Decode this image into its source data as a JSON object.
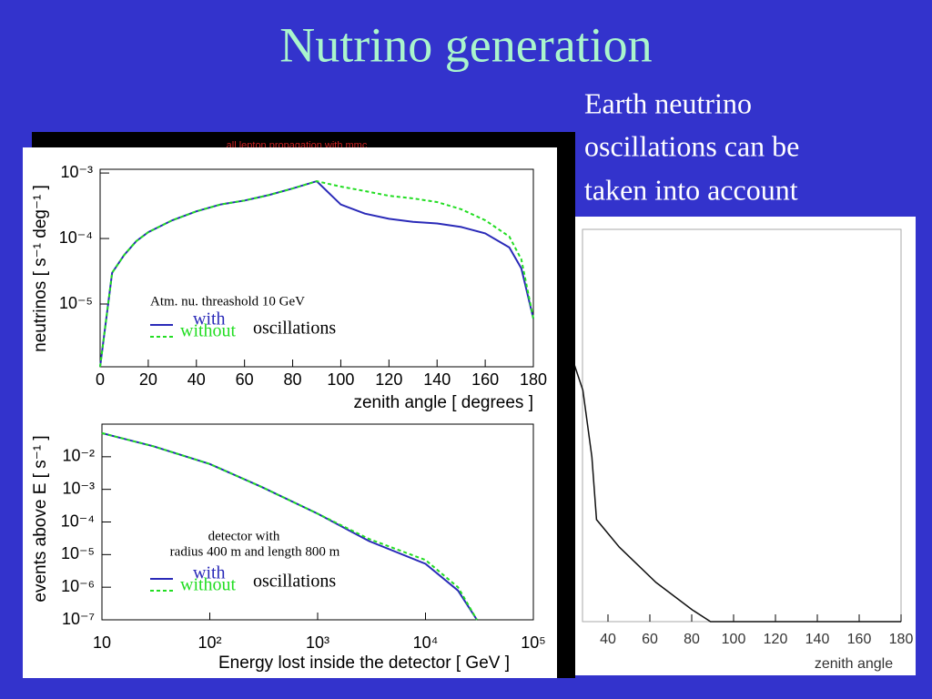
{
  "title": "Nutrino generation",
  "text": [
    "Earth neutrino",
    "oscillations can be",
    "taken into account"
  ],
  "chart_data": [
    {
      "type": "line",
      "ylog": true,
      "xlabel": "zenith angle [ degrees ]",
      "ylabel": "neutrinos [ s⁻¹ deg⁻¹ ]",
      "annotations": [
        "Atm. nu. threashold 10 GeV"
      ],
      "legend_note": "oscillations",
      "xlim": [
        0,
        180
      ],
      "xticks": [
        0,
        20,
        40,
        60,
        80,
        100,
        120,
        140,
        160,
        180
      ],
      "ylim": [
        1.1e-06,
        0.00114
      ],
      "yticks": [
        {
          "value": 0.001,
          "label": "10⁻³"
        },
        {
          "value": 0.0001,
          "label": "10⁻⁴"
        },
        {
          "value": 1e-05,
          "label": "10⁻⁵"
        }
      ],
      "x": [
        0,
        5,
        10,
        15,
        20,
        30,
        40,
        50,
        60,
        70,
        80,
        90,
        100,
        110,
        120,
        130,
        140,
        150,
        160,
        170,
        175,
        180
      ],
      "series": [
        {
          "name": "with",
          "color": "#2a2ab8",
          "dashed": false,
          "values": [
            1.1e-06,
            3e-05,
            5.6e-05,
            9.1e-05,
            0.000125,
            0.00019,
            0.00026,
            0.00033,
            0.00038,
            0.00046,
            0.00058,
            0.00075,
            0.00033,
            0.00024,
            0.0002,
            0.00018,
            0.00017,
            0.00015,
            0.00012,
            7.3e-05,
            3.5e-05,
            6e-06
          ]
        },
        {
          "name": "without",
          "color": "#22dd22",
          "dashed": true,
          "values": [
            1.1e-06,
            3e-05,
            5.6e-05,
            9.1e-05,
            0.000125,
            0.00019,
            0.00026,
            0.00033,
            0.00038,
            0.00046,
            0.00058,
            0.00075,
            0.00062,
            0.00053,
            0.00045,
            0.00041,
            0.00036,
            0.00028,
            0.00019,
            0.000107,
            4.8e-05,
            6e-06
          ]
        }
      ]
    },
    {
      "type": "line",
      "xlog": true,
      "ylog": true,
      "xlabel": "Energy lost inside the detector [ GeV ]",
      "ylabel": "events above E [ s⁻¹ ]",
      "annotations": [
        "detector with",
        "radius 400 m and length 800 m"
      ],
      "legend_note": "oscillations",
      "xlim": [
        10,
        100000
      ],
      "xticks": [
        10,
        {
          "value": 100,
          "label": "10²"
        },
        {
          "value": 1000,
          "label": "10³"
        },
        {
          "value": 10000,
          "label": "10⁴"
        },
        {
          "value": 100000,
          "label": "10⁵"
        }
      ],
      "ylim": [
        1e-07,
        0.1
      ],
      "yticks": [
        {
          "value": 0.01,
          "label": "10⁻²"
        },
        {
          "value": 0.001,
          "label": "10⁻³"
        },
        {
          "value": 0.0001,
          "label": "10⁻⁴"
        },
        {
          "value": 1e-05,
          "label": "10⁻⁵"
        },
        {
          "value": 1e-06,
          "label": "10⁻⁶"
        },
        {
          "value": 1e-07,
          "label": "10⁻⁷"
        }
      ],
      "x": [
        10,
        30,
        100,
        300,
        1000,
        3000,
        10000,
        20000,
        30000
      ],
      "series": [
        {
          "name": "with",
          "color": "#2a2ab8",
          "dashed": false,
          "values": [
            0.053,
            0.021,
            0.006,
            0.0012,
            0.00018,
            2.6e-05,
            5.2e-06,
            7.9e-07,
            1e-07
          ]
        },
        {
          "name": "without",
          "color": "#22dd22",
          "dashed": true,
          "values": [
            0.053,
            0.021,
            0.006,
            0.0012,
            0.00018,
            3e-05,
            6.8e-06,
            1e-06,
            1e-07
          ]
        }
      ]
    },
    {
      "type": "line",
      "title": "all lepton propagation with mmc",
      "xlabel": "zenith angle",
      "xlim": [
        0,
        180
      ],
      "xticks": [
        40,
        60,
        80,
        100,
        120,
        140,
        160,
        180
      ],
      "ylim": [
        0,
        1
      ],
      "x": [
        23.6,
        28,
        32.3,
        34.5,
        45.4,
        62.9,
        80.3,
        89,
        180
      ],
      "series": [
        {
          "color": "#111111",
          "values": [
            0.66,
            0.59,
            0.42,
            0.26,
            0.19,
            0.1,
            0.03,
            0,
            0
          ]
        }
      ]
    }
  ]
}
